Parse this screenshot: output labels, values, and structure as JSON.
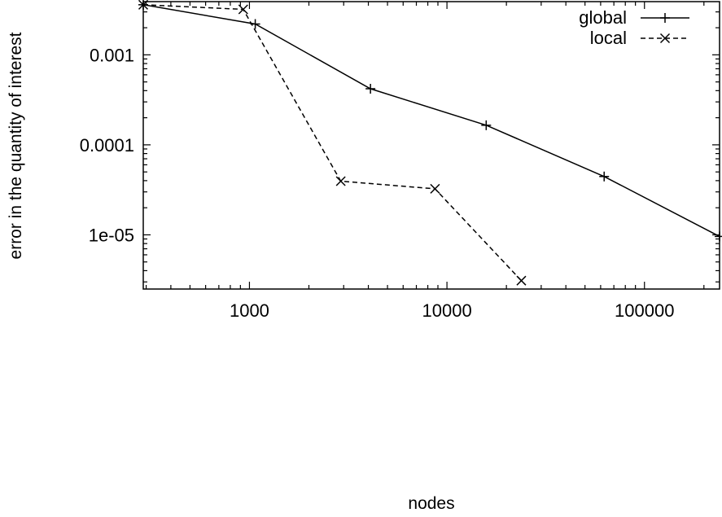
{
  "chart_data": {
    "type": "line",
    "title": "",
    "xlabel": "nodes",
    "ylabel": "error in the quantity of interest",
    "xscale": "log",
    "yscale": "log",
    "xlim": [
      290,
      240000
    ],
    "ylim": [
      2.5e-06,
      0.0039
    ],
    "xticks": [
      {
        "value": 1000,
        "label": "1000"
      },
      {
        "value": 10000,
        "label": "10000"
      },
      {
        "value": 100000,
        "label": "100000"
      }
    ],
    "yticks": [
      {
        "value": 1e-05,
        "label": "1e-05"
      },
      {
        "value": 0.0001,
        "label": "0.0001"
      },
      {
        "value": 0.001,
        "label": "0.001"
      }
    ],
    "grid": false,
    "legend": "top-right",
    "series": [
      {
        "name": "global",
        "line": "solid",
        "marker": "+",
        "x": [
          290,
          1070,
          4100,
          15800,
          62500,
          240000
        ],
        "y": [
          0.0036,
          0.0022,
          0.00042,
          0.000165,
          4.45e-05,
          9.6e-06
        ]
      },
      {
        "name": "local",
        "line": "dashed",
        "marker": "x",
        "x": [
          290,
          930,
          2900,
          8700,
          23800
        ],
        "y": [
          0.0036,
          0.0032,
          3.95e-05,
          3.25e-05,
          3.1e-06
        ]
      }
    ]
  }
}
